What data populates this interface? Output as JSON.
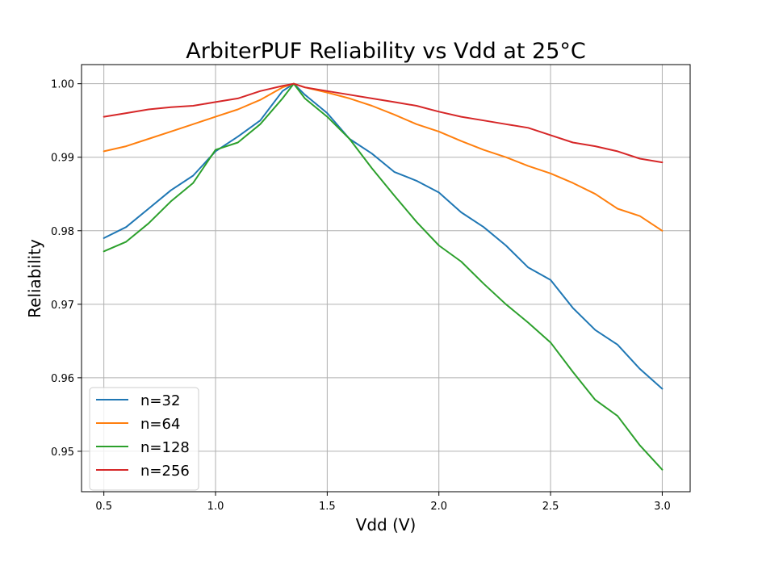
{
  "chart_data": {
    "type": "line",
    "title": "ArbiterPUF Reliability vs Vdd at 25°C",
    "xlabel": "Vdd (V)",
    "ylabel": "Reliability",
    "xlim": [
      0.4,
      3.125
    ],
    "ylim": [
      0.9445,
      1.0026
    ],
    "xticks": [
      0.5,
      1.0,
      1.5,
      2.0,
      2.5,
      3.0
    ],
    "xtick_labels": [
      "0.5",
      "1.0",
      "1.5",
      "2.0",
      "2.5",
      "3.0"
    ],
    "yticks": [
      0.95,
      0.96,
      0.97,
      0.98,
      0.99,
      1.0
    ],
    "ytick_labels": [
      "0.95",
      "0.96",
      "0.97",
      "0.98",
      "0.99",
      "1.00"
    ],
    "grid": true,
    "legend_position": "lower-left",
    "series": [
      {
        "name": "n=32",
        "color": "#1f77b4",
        "x": [
          0.5,
          0.6,
          0.7,
          0.8,
          0.9,
          1.0,
          1.1,
          1.2,
          1.3,
          1.35,
          1.4,
          1.5,
          1.6,
          1.7,
          1.8,
          1.9,
          2.0,
          2.1,
          2.2,
          2.3,
          2.4,
          2.5,
          2.6,
          2.7,
          2.8,
          2.9,
          3.0
        ],
        "y": [
          0.979,
          0.9805,
          0.983,
          0.9855,
          0.9875,
          0.9908,
          0.9928,
          0.995,
          0.999,
          1.0,
          0.9985,
          0.996,
          0.9925,
          0.9905,
          0.988,
          0.9868,
          0.9852,
          0.9825,
          0.9805,
          0.978,
          0.975,
          0.9733,
          0.9695,
          0.9665,
          0.9645,
          0.9612,
          0.9585
        ]
      },
      {
        "name": "n=64",
        "color": "#ff7f0e",
        "x": [
          0.5,
          0.6,
          0.7,
          0.8,
          0.9,
          1.0,
          1.1,
          1.2,
          1.3,
          1.35,
          1.4,
          1.5,
          1.6,
          1.7,
          1.8,
          1.9,
          2.0,
          2.1,
          2.2,
          2.3,
          2.4,
          2.5,
          2.6,
          2.7,
          2.8,
          2.9,
          3.0
        ],
        "y": [
          0.9908,
          0.9915,
          0.9925,
          0.9935,
          0.9945,
          0.9955,
          0.9965,
          0.9978,
          0.9995,
          1.0,
          0.9995,
          0.9988,
          0.998,
          0.997,
          0.9958,
          0.9945,
          0.9935,
          0.9922,
          0.991,
          0.99,
          0.9888,
          0.9878,
          0.9865,
          0.985,
          0.983,
          0.982,
          0.98
        ]
      },
      {
        "name": "n=128",
        "color": "#2ca02c",
        "x": [
          0.5,
          0.6,
          0.7,
          0.8,
          0.9,
          1.0,
          1.1,
          1.2,
          1.3,
          1.35,
          1.4,
          1.5,
          1.6,
          1.7,
          1.8,
          1.9,
          2.0,
          2.1,
          2.2,
          2.3,
          2.4,
          2.5,
          2.6,
          2.7,
          2.8,
          2.9,
          3.0
        ],
        "y": [
          0.9772,
          0.9785,
          0.981,
          0.984,
          0.9865,
          0.991,
          0.992,
          0.9945,
          0.998,
          1.0,
          0.998,
          0.9955,
          0.9925,
          0.9885,
          0.9848,
          0.9812,
          0.978,
          0.9758,
          0.9728,
          0.97,
          0.9675,
          0.9648,
          0.9608,
          0.957,
          0.9548,
          0.9508,
          0.9475
        ]
      },
      {
        "name": "n=256",
        "color": "#d62728",
        "x": [
          0.5,
          0.6,
          0.7,
          0.8,
          0.9,
          1.0,
          1.1,
          1.2,
          1.3,
          1.35,
          1.4,
          1.5,
          1.6,
          1.7,
          1.8,
          1.9,
          2.0,
          2.1,
          2.2,
          2.3,
          2.4,
          2.5,
          2.6,
          2.7,
          2.8,
          2.9,
          3.0
        ],
        "y": [
          0.9955,
          0.996,
          0.9965,
          0.9968,
          0.997,
          0.9975,
          0.998,
          0.999,
          0.9997,
          1.0,
          0.9995,
          0.999,
          0.9985,
          0.998,
          0.9975,
          0.997,
          0.9962,
          0.9955,
          0.995,
          0.9945,
          0.994,
          0.993,
          0.992,
          0.9915,
          0.9908,
          0.9898,
          0.9893
        ]
      }
    ]
  }
}
